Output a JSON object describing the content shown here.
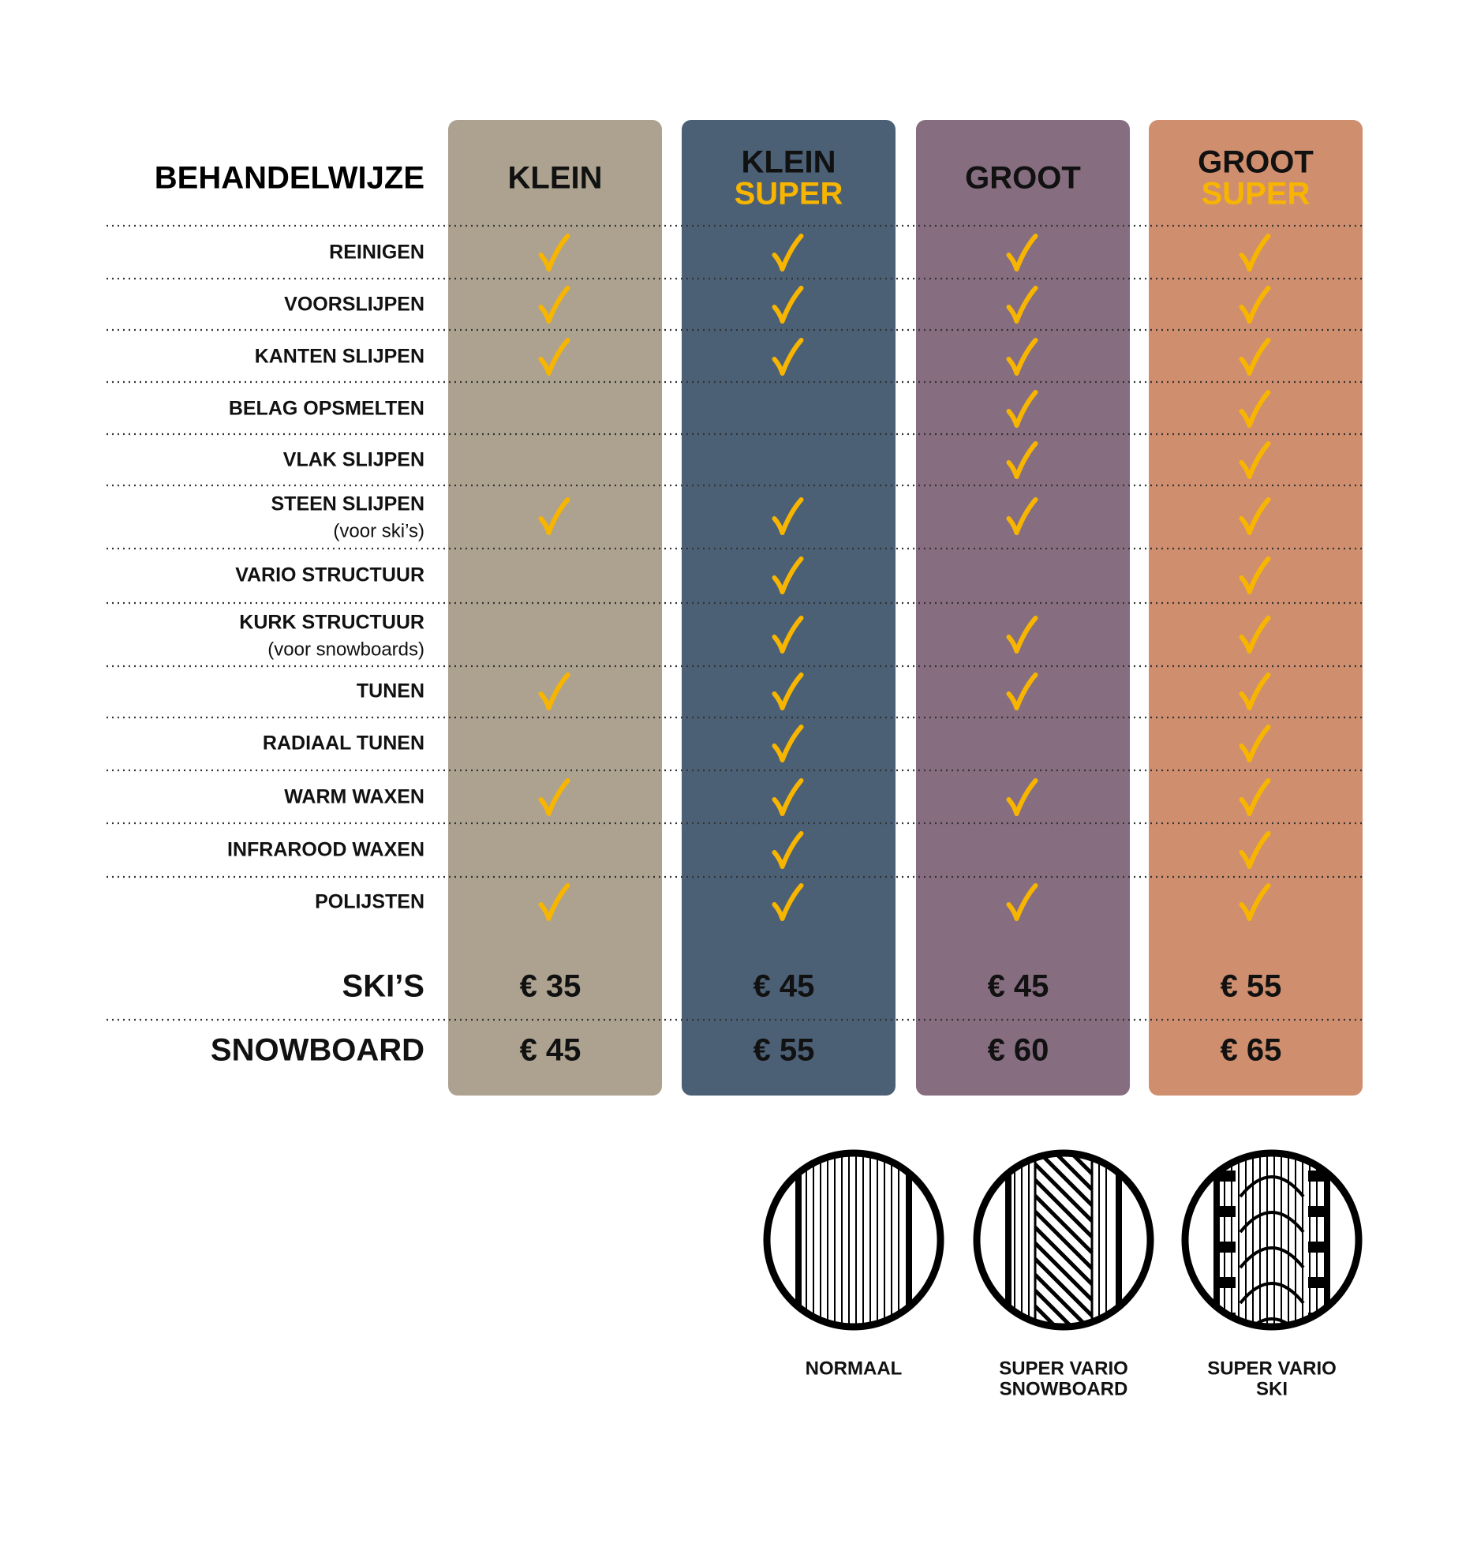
{
  "header": {
    "title": "BEHANDELWIJZE"
  },
  "columns": [
    {
      "name": "KLEIN",
      "color": "#ada290"
    },
    {
      "name": "KLEIN",
      "sub": "SUPER",
      "color": "#4b5f75"
    },
    {
      "name": "GROOT",
      "color": "#866e80"
    },
    {
      "name": "GROOT",
      "sub": "SUPER",
      "color": "#cf8f6f"
    }
  ],
  "rows": [
    {
      "label": "REINIGEN",
      "checks": [
        true,
        true,
        true,
        true
      ]
    },
    {
      "label": "VOORSLIJPEN",
      "checks": [
        true,
        true,
        true,
        true
      ]
    },
    {
      "label": "KANTEN SLIJPEN",
      "checks": [
        true,
        true,
        true,
        true
      ]
    },
    {
      "label": "BELAG OPSMELTEN",
      "checks": [
        false,
        false,
        true,
        true
      ]
    },
    {
      "label": "VLAK SLIJPEN",
      "checks": [
        false,
        false,
        true,
        true
      ]
    },
    {
      "label": "STEEN SLIJPEN",
      "note": "(voor ski’s)",
      "checks": [
        true,
        true,
        true,
        true
      ]
    },
    {
      "label": "VARIO STRUCTUUR",
      "checks": [
        false,
        true,
        false,
        true
      ]
    },
    {
      "label": "KURK STRUCTUUR",
      "note": "(voor snowboards)",
      "checks": [
        false,
        true,
        true,
        true
      ]
    },
    {
      "label": "TUNEN",
      "checks": [
        true,
        true,
        true,
        true
      ]
    },
    {
      "label": "RADIAAL TUNEN",
      "checks": [
        false,
        true,
        false,
        true
      ]
    },
    {
      "label": "WARM WAXEN",
      "checks": [
        true,
        true,
        true,
        true
      ]
    },
    {
      "label": "INFRAROOD WAXEN",
      "checks": [
        false,
        true,
        false,
        true
      ]
    },
    {
      "label": "POLIJSTEN",
      "checks": [
        true,
        true,
        true,
        true
      ]
    }
  ],
  "prices": [
    {
      "label": "SKI’S",
      "values": [
        "€ 35",
        "€ 45",
        "€ 45",
        "€ 55"
      ]
    },
    {
      "label": "SNOWBOARD",
      "values": [
        "€ 45",
        "€ 55",
        "€ 60",
        "€ 65"
      ]
    }
  ],
  "legend": [
    {
      "lines": [
        "NORMAAL"
      ]
    },
    {
      "lines": [
        "SUPER VARIO",
        "SNOWBOARD"
      ]
    },
    {
      "lines": [
        "SUPER VARIO",
        "SKI"
      ]
    }
  ]
}
